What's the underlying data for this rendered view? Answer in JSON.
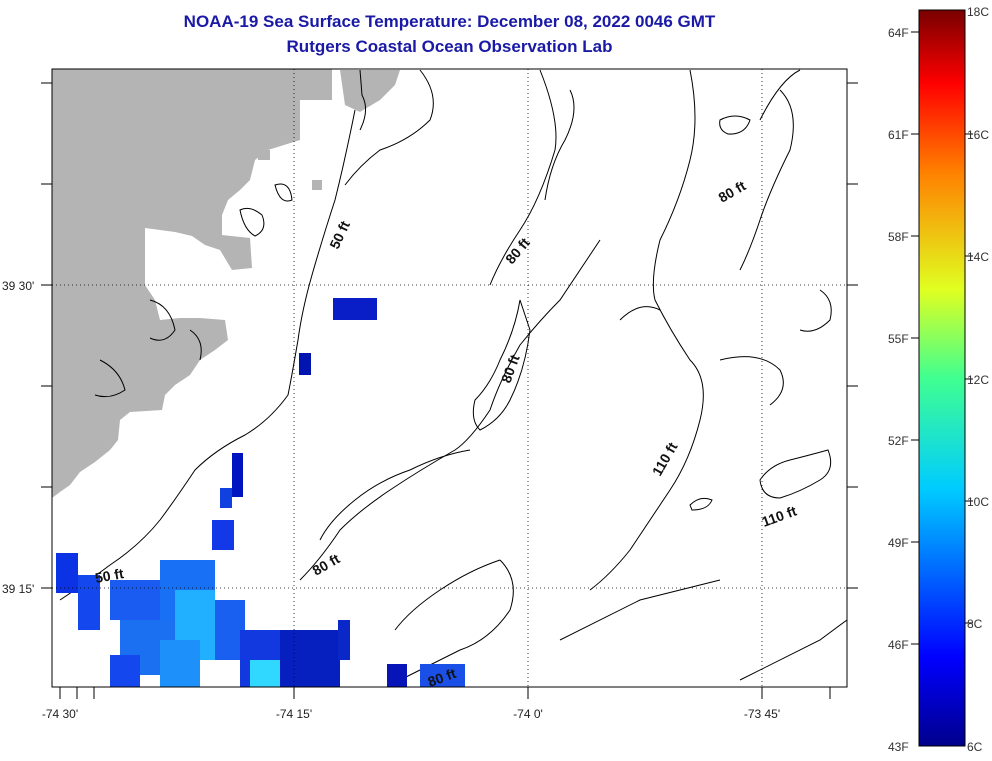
{
  "title": {
    "line1": "NOAA-19 Sea Surface Temperature:  December 08, 2022 0046 GMT",
    "line2": "Rutgers Coastal Ocean Observation Lab"
  },
  "map": {
    "lat_labels": [
      "39 30'",
      "39 15'"
    ],
    "lon_labels": [
      "-74 30'",
      "-74 15'",
      "-74 0'",
      "-73 45'"
    ],
    "depth_labels": [
      "50 ft",
      "50 ft",
      "80 ft",
      "80 ft",
      "80 ft",
      "80 ft",
      "80 ft",
      "110 ft",
      "110 ft"
    ]
  },
  "colorbar": {
    "fahrenheit": [
      "64F",
      "61F",
      "58F",
      "55F",
      "52F",
      "49F",
      "46F",
      "43F"
    ],
    "celsius": [
      "18C",
      "16C",
      "14C",
      "12C",
      "10C",
      "8C",
      "6C"
    ]
  },
  "colors": {
    "title": "#1a1aa6",
    "land": "#b4b4b4",
    "sst_cold": "#00008c",
    "sst_warm": "#780000"
  }
}
